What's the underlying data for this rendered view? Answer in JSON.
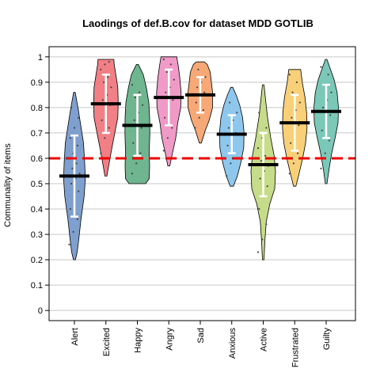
{
  "chart_data": {
    "type": "violin",
    "title": "Laodings of def.B.cov for dataset MDD GOTLIB",
    "xlabel": "",
    "ylabel": "Communality of items",
    "ylim": [
      -0.04,
      1.04
    ],
    "yticks": [
      0,
      0.1,
      0.2,
      0.3,
      0.4,
      0.5,
      0.6,
      0.7,
      0.8,
      0.9,
      1
    ],
    "ytick_labels": [
      "0",
      "0.1",
      "0.2",
      "0.3",
      "0.4",
      "0.5",
      "0.6",
      "0.7",
      "0.8",
      "0.9",
      "1"
    ],
    "grid": "horizontal",
    "reference_line": {
      "y": 0.6,
      "color": "#ee0000",
      "style": "dashed"
    },
    "categories": [
      "Alert",
      "Excited",
      "Happy",
      "Angry",
      "Sad",
      "Anxious",
      "Active",
      "Frustrated",
      "Guilty"
    ],
    "colors": [
      "#7f9fcf",
      "#f07f86",
      "#6fb58f",
      "#f09ac8",
      "#f6a877",
      "#8ec6ec",
      "#c7dc8a",
      "#f8d07a",
      "#7cc8b8"
    ],
    "series": [
      {
        "category": "Alert",
        "min": 0.2,
        "max": 0.86,
        "mean": 0.53,
        "sd_low": 0.37,
        "sd_high": 0.69,
        "profile": [
          [
            0.2,
            0.05
          ],
          [
            0.23,
            0.14
          ],
          [
            0.28,
            0.22
          ],
          [
            0.36,
            0.33
          ],
          [
            0.45,
            0.49
          ],
          [
            0.52,
            0.55
          ],
          [
            0.58,
            0.52
          ],
          [
            0.66,
            0.46
          ],
          [
            0.74,
            0.3
          ],
          [
            0.8,
            0.18
          ],
          [
            0.86,
            0.04
          ]
        ],
        "points": [
          0.26,
          0.31,
          0.36,
          0.4,
          0.44,
          0.47,
          0.5,
          0.52,
          0.54,
          0.56,
          0.58,
          0.6,
          0.62,
          0.65,
          0.68,
          0.72,
          0.76,
          0.8
        ]
      },
      {
        "category": "Excited",
        "min": 0.53,
        "max": 0.99,
        "mean": 0.815,
        "sd_low": 0.7,
        "sd_high": 0.93,
        "profile": [
          [
            0.53,
            0.05
          ],
          [
            0.58,
            0.16
          ],
          [
            0.64,
            0.3
          ],
          [
            0.7,
            0.45
          ],
          [
            0.76,
            0.6
          ],
          [
            0.82,
            0.62
          ],
          [
            0.88,
            0.6
          ],
          [
            0.93,
            0.5
          ],
          [
            0.97,
            0.42
          ],
          [
            0.99,
            0.4
          ]
        ],
        "points": [
          0.62,
          0.68,
          0.72,
          0.75,
          0.78,
          0.81,
          0.83,
          0.85,
          0.88,
          0.9,
          0.92,
          0.95,
          0.97,
          0.98
        ]
      },
      {
        "category": "Happy",
        "min": 0.5,
        "max": 0.97,
        "mean": 0.73,
        "sd_low": 0.61,
        "sd_high": 0.85,
        "profile": [
          [
            0.5,
            0.42
          ],
          [
            0.52,
            0.6
          ],
          [
            0.57,
            0.62
          ],
          [
            0.63,
            0.6
          ],
          [
            0.7,
            0.63
          ],
          [
            0.76,
            0.62
          ],
          [
            0.82,
            0.58
          ],
          [
            0.88,
            0.45
          ],
          [
            0.93,
            0.3
          ],
          [
            0.97,
            0.05
          ]
        ],
        "points": [
          0.54,
          0.58,
          0.62,
          0.66,
          0.69,
          0.72,
          0.75,
          0.78,
          0.81,
          0.84,
          0.86,
          0.89
        ]
      },
      {
        "category": "Angry",
        "min": 0.57,
        "max": 1.0,
        "mean": 0.84,
        "sd_low": 0.73,
        "sd_high": 0.95,
        "profile": [
          [
            0.57,
            0.05
          ],
          [
            0.62,
            0.18
          ],
          [
            0.68,
            0.35
          ],
          [
            0.74,
            0.45
          ],
          [
            0.8,
            0.6
          ],
          [
            0.86,
            0.62
          ],
          [
            0.92,
            0.55
          ],
          [
            0.96,
            0.48
          ],
          [
            0.99,
            0.42
          ],
          [
            1.0,
            0.4
          ]
        ],
        "points": [
          0.63,
          0.68,
          0.72,
          0.76,
          0.8,
          0.83,
          0.86,
          0.88,
          0.91,
          0.94,
          0.97,
          0.99
        ]
      },
      {
        "category": "Sad",
        "min": 0.66,
        "max": 0.98,
        "mean": 0.85,
        "sd_low": 0.78,
        "sd_high": 0.92,
        "profile": [
          [
            0.66,
            0.05
          ],
          [
            0.71,
            0.25
          ],
          [
            0.75,
            0.45
          ],
          [
            0.8,
            0.62
          ],
          [
            0.86,
            0.62
          ],
          [
            0.9,
            0.56
          ],
          [
            0.94,
            0.5
          ],
          [
            0.97,
            0.35
          ],
          [
            0.98,
            0.2
          ]
        ],
        "points": [
          0.72,
          0.76,
          0.79,
          0.82,
          0.84,
          0.86,
          0.88,
          0.9,
          0.92,
          0.95
        ]
      },
      {
        "category": "Anxious",
        "min": 0.49,
        "max": 0.88,
        "mean": 0.695,
        "sd_low": 0.62,
        "sd_high": 0.77,
        "profile": [
          [
            0.49,
            0.08
          ],
          [
            0.53,
            0.28
          ],
          [
            0.58,
            0.45
          ],
          [
            0.64,
            0.6
          ],
          [
            0.7,
            0.62
          ],
          [
            0.76,
            0.55
          ],
          [
            0.81,
            0.4
          ],
          [
            0.85,
            0.22
          ],
          [
            0.88,
            0.05
          ]
        ],
        "points": [
          0.53,
          0.58,
          0.62,
          0.65,
          0.68,
          0.7,
          0.72,
          0.75,
          0.78,
          0.82
        ]
      },
      {
        "category": "Active",
        "min": 0.2,
        "max": 0.89,
        "mean": 0.575,
        "sd_low": 0.45,
        "sd_high": 0.7,
        "profile": [
          [
            0.2,
            0.04
          ],
          [
            0.27,
            0.08
          ],
          [
            0.35,
            0.15
          ],
          [
            0.42,
            0.33
          ],
          [
            0.48,
            0.58
          ],
          [
            0.55,
            0.62
          ],
          [
            0.61,
            0.55
          ],
          [
            0.68,
            0.38
          ],
          [
            0.76,
            0.22
          ],
          [
            0.83,
            0.12
          ],
          [
            0.89,
            0.04
          ]
        ],
        "points": [
          0.23,
          0.28,
          0.34,
          0.4,
          0.45,
          0.49,
          0.52,
          0.55,
          0.57,
          0.59,
          0.61,
          0.64,
          0.68,
          0.72,
          0.78
        ]
      },
      {
        "category": "Frustrated",
        "min": 0.49,
        "max": 0.95,
        "mean": 0.74,
        "sd_low": 0.63,
        "sd_high": 0.85,
        "profile": [
          [
            0.49,
            0.06
          ],
          [
            0.54,
            0.22
          ],
          [
            0.6,
            0.4
          ],
          [
            0.66,
            0.55
          ],
          [
            0.72,
            0.62
          ],
          [
            0.78,
            0.6
          ],
          [
            0.84,
            0.52
          ],
          [
            0.9,
            0.38
          ],
          [
            0.95,
            0.3
          ]
        ],
        "points": [
          0.54,
          0.58,
          0.62,
          0.66,
          0.7,
          0.73,
          0.76,
          0.79,
          0.82,
          0.86,
          0.9,
          0.93
        ]
      },
      {
        "category": "Guilty",
        "min": 0.5,
        "max": 0.99,
        "mean": 0.785,
        "sd_low": 0.68,
        "sd_high": 0.89,
        "profile": [
          [
            0.5,
            0.04
          ],
          [
            0.56,
            0.15
          ],
          [
            0.62,
            0.28
          ],
          [
            0.68,
            0.45
          ],
          [
            0.74,
            0.6
          ],
          [
            0.8,
            0.62
          ],
          [
            0.86,
            0.55
          ],
          [
            0.91,
            0.4
          ],
          [
            0.95,
            0.22
          ],
          [
            0.99,
            0.04
          ]
        ],
        "points": [
          0.56,
          0.62,
          0.67,
          0.71,
          0.74,
          0.77,
          0.8,
          0.83,
          0.86,
          0.89,
          0.93,
          0.96
        ]
      }
    ]
  }
}
